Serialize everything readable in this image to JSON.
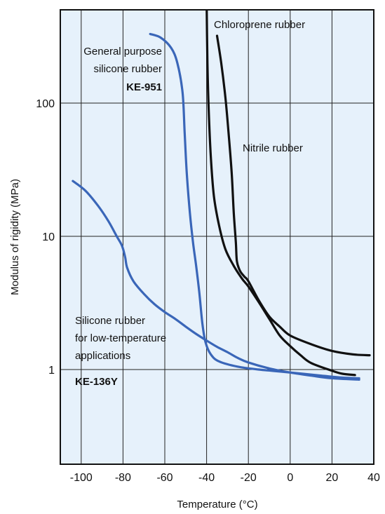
{
  "chart_data": {
    "type": "line",
    "xlabel": "Temperature (°C)",
    "ylabel": "Modulus of rigidity (MPa)",
    "xlim": [
      -110,
      40
    ],
    "ylim": [
      0.15,
      500
    ],
    "yscale": "log",
    "x_ticks": [
      -100,
      -80,
      -60,
      -40,
      -20,
      0,
      20,
      40
    ],
    "x_tick_labels": [
      "-100",
      "-80",
      "-60",
      "-40",
      "-20",
      "0",
      "20",
      "40"
    ],
    "y_ticks": [
      1,
      10,
      100
    ],
    "y_tick_labels": [
      "1",
      "10",
      "100"
    ],
    "grid": true,
    "background": "#e6f1fb",
    "colors": {
      "silicone": "#3a66b8",
      "organic": "#111111",
      "grid": "#222222"
    },
    "annotations": [
      {
        "lines": [
          "Chloroprene rubber"
        ],
        "bold_line": ""
      },
      {
        "lines": [
          "Nitrile rubber"
        ],
        "bold_line": ""
      },
      {
        "lines": [
          "General purpose",
          "silicone rubber"
        ],
        "bold_line": "KE-951"
      },
      {
        "lines": [
          "Silicone rubber",
          "for low-temperature",
          "applications"
        ],
        "bold_line": "KE-136Y"
      }
    ],
    "series": [
      {
        "name": "KE-951",
        "color": "#3a66b8",
        "points": [
          [
            -67,
            330
          ],
          [
            -62,
            310
          ],
          [
            -57,
            260
          ],
          [
            -54,
            200
          ],
          [
            -51.5,
            120
          ],
          [
            -50.5,
            60
          ],
          [
            -49.5,
            30
          ],
          [
            -48,
            15
          ],
          [
            -46.5,
            9
          ],
          [
            -45,
            6
          ],
          [
            -43.5,
            3.8
          ],
          [
            -42,
            2.2
          ],
          [
            -40.5,
            1.6
          ],
          [
            -38,
            1.3
          ],
          [
            -34,
            1.15
          ],
          [
            -25,
            1.05
          ],
          [
            -15,
            1.0
          ],
          [
            0,
            0.95
          ],
          [
            15,
            0.9
          ],
          [
            25,
            0.87
          ],
          [
            33,
            0.86
          ]
        ]
      },
      {
        "name": "KE-136Y",
        "color": "#3a66b8",
        "points": [
          [
            -104,
            26
          ],
          [
            -98,
            22
          ],
          [
            -92,
            17
          ],
          [
            -87,
            13
          ],
          [
            -83,
            10
          ],
          [
            -80.5,
            8.5
          ],
          [
            -79,
            7
          ],
          [
            -78,
            5.8
          ],
          [
            -75,
            4.6
          ],
          [
            -70,
            3.7
          ],
          [
            -65,
            3.1
          ],
          [
            -60,
            2.7
          ],
          [
            -55,
            2.4
          ],
          [
            -50,
            2.1
          ],
          [
            -45,
            1.85
          ],
          [
            -40,
            1.65
          ],
          [
            -35,
            1.48
          ],
          [
            -30,
            1.35
          ],
          [
            -25,
            1.22
          ],
          [
            -20,
            1.13
          ],
          [
            -10,
            1.02
          ],
          [
            0,
            0.95
          ],
          [
            10,
            0.9
          ],
          [
            20,
            0.86
          ],
          [
            33,
            0.84
          ]
        ]
      },
      {
        "name": "Chloroprene rubber",
        "color": "#111111",
        "points": [
          [
            -35,
            320
          ],
          [
            -33,
            200
          ],
          [
            -31,
            110
          ],
          [
            -29.5,
            60
          ],
          [
            -28,
            30
          ],
          [
            -27,
            15
          ],
          [
            -26,
            9
          ],
          [
            -25.5,
            6.5
          ],
          [
            -24,
            5.5
          ],
          [
            -22,
            5
          ],
          [
            -20,
            4.6
          ],
          [
            -15,
            3.3
          ],
          [
            -10,
            2.5
          ],
          [
            -5,
            2.1
          ],
          [
            0,
            1.8
          ],
          [
            10,
            1.55
          ],
          [
            20,
            1.38
          ],
          [
            30,
            1.3
          ],
          [
            38,
            1.28
          ]
        ]
      },
      {
        "name": "Nitrile rubber",
        "color": "#111111",
        "points": [
          [
            -40,
            600
          ],
          [
            -39.6,
            200
          ],
          [
            -39,
            90
          ],
          [
            -38,
            40
          ],
          [
            -36.5,
            20
          ],
          [
            -34,
            12
          ],
          [
            -31,
            8
          ],
          [
            -27,
            6
          ],
          [
            -23,
            4.8
          ],
          [
            -20,
            4.2
          ],
          [
            -15,
            3.2
          ],
          [
            -10,
            2.4
          ],
          [
            -5,
            1.8
          ],
          [
            0,
            1.5
          ],
          [
            5,
            1.28
          ],
          [
            10,
            1.12
          ],
          [
            20,
            0.98
          ],
          [
            25,
            0.93
          ],
          [
            31,
            0.91
          ]
        ]
      }
    ]
  }
}
